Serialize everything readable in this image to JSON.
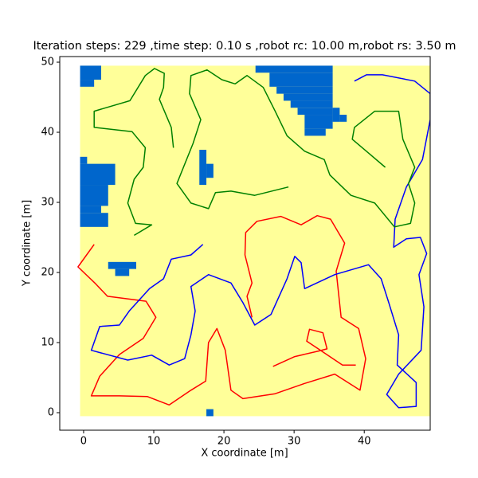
{
  "chart_data": {
    "type": "map",
    "title": "Iteration steps: 229 ,time step: 0.10 s ,robot rc: 10.00 m,robot rs: 3.50 m",
    "xlabel": "X coordinate [m]",
    "ylabel": "Y coordinate [m]",
    "xlim": [
      -3.4,
      49.4
    ],
    "ylim": [
      -2.5,
      50.8
    ],
    "xticks": [
      0,
      10,
      20,
      30,
      40
    ],
    "yticks": [
      0,
      10,
      20,
      30,
      40,
      50
    ],
    "map": {
      "free_color": "#ffff99",
      "obstacle_color": "#0066cc",
      "extent": [
        -0.5,
        49.5,
        -0.5,
        49.5
      ],
      "obstacles": [
        [
          -0.5,
          47.5,
          2.5,
          49.5
        ],
        [
          -0.5,
          46.5,
          1.5,
          47.5
        ],
        [
          -0.5,
          35.5,
          0.5,
          36.5
        ],
        [
          -0.5,
          32.5,
          4.5,
          35.5
        ],
        [
          -0.5,
          29.5,
          3.5,
          32.5
        ],
        [
          -0.5,
          28.5,
          2.5,
          29.5
        ],
        [
          -0.5,
          26.5,
          3.5,
          28.5
        ],
        [
          3.5,
          20.5,
          7.5,
          21.5
        ],
        [
          4.5,
          19.5,
          6.5,
          20.5
        ],
        [
          16.5,
          32.5,
          17.5,
          37.5
        ],
        [
          17.5,
          33.5,
          18.5,
          35.5
        ],
        [
          24.5,
          48.5,
          35.5,
          49.5
        ],
        [
          26.5,
          46.5,
          35.5,
          48.5
        ],
        [
          27.5,
          45.5,
          35.5,
          46.5
        ],
        [
          28.5,
          44.5,
          35.5,
          45.5
        ],
        [
          29.5,
          43.5,
          35.5,
          44.5
        ],
        [
          30.5,
          42.5,
          35.5,
          43.5
        ],
        [
          35.5,
          41.5,
          36.5,
          43.5
        ],
        [
          36.5,
          41.5,
          37.5,
          42.5
        ],
        [
          31.5,
          40.5,
          35.5,
          42.5
        ],
        [
          31.5,
          39.5,
          34.5,
          40.5
        ],
        [
          17.5,
          -0.5,
          18.5,
          0.5
        ]
      ]
    },
    "series": [
      {
        "color": "red",
        "x": [
          1.5,
          -0.8,
          1.7,
          3.4,
          8.9,
          10.3,
          8.5,
          5.1,
          2.3,
          1.1,
          5.1,
          9.1,
          12.2,
          15.3,
          17.4,
          17.8,
          19.0,
          20.2,
          21.0,
          22.7,
          27.3,
          31.3,
          35.8,
          39.4,
          40.2,
          39.2,
          36.7,
          36.0,
          37.2,
          35.2,
          33.3,
          31.0,
          28.1,
          24.7,
          23.1,
          23.0,
          24.0,
          23.3,
          24.0,
          null,
          27.0,
          30.1,
          33.5,
          34.7,
          34.1,
          32.2,
          31.8,
          33.3,
          36.9,
          38.8
        ],
        "y": [
          24.0,
          20.8,
          18.4,
          16.6,
          15.9,
          13.6,
          10.6,
          8.3,
          5.2,
          2.4,
          2.4,
          2.3,
          1.1,
          3.2,
          4.5,
          10.0,
          12.0,
          8.9,
          3.2,
          2.0,
          2.7,
          4.1,
          5.5,
          3.2,
          7.7,
          12.0,
          13.6,
          20.2,
          24.2,
          27.6,
          28.1,
          26.8,
          28.0,
          27.3,
          25.7,
          22.5,
          18.5,
          16.6,
          13.6,
          null,
          6.6,
          8.0,
          8.8,
          9.1,
          11.4,
          11.9,
          10.2,
          9.2,
          6.8,
          6.8
        ]
      },
      {
        "color": "blue",
        "x": [
          17.0,
          15.3,
          12.5,
          11.4,
          9.4,
          6.5,
          5.1,
          2.3,
          1.1,
          6.3,
          9.7,
          12.2,
          14.4,
          15.3,
          15.9,
          15.3,
          17.8,
          21.0,
          22.7,
          24.4,
          26.7,
          29.0,
          30.1,
          31.0,
          31.5,
          35.8,
          40.6,
          42.4,
          43.5,
          44.9,
          44.7,
          47.4,
          47.4,
          44.9,
          43.2,
          44.9,
          48.1,
          48.5,
          47.8,
          48.9,
          48.0,
          46.0,
          44.2,
          44.4,
          46.0,
          48.3,
          49.4,
          49.4,
          47.2,
          42.6,
          40.3,
          38.6
        ],
        "y": [
          24.0,
          22.5,
          21.9,
          19.1,
          17.7,
          14.5,
          12.5,
          12.3,
          8.9,
          7.5,
          8.2,
          6.8,
          7.7,
          11.1,
          14.5,
          18.0,
          19.7,
          18.5,
          15.7,
          12.5,
          14.0,
          19.1,
          22.3,
          21.4,
          17.7,
          19.7,
          21.1,
          19.1,
          15.7,
          11.1,
          6.8,
          4.3,
          0.9,
          0.7,
          2.6,
          5.5,
          8.9,
          15.1,
          19.7,
          22.7,
          25.0,
          24.8,
          23.6,
          27.6,
          32.2,
          36.1,
          41.8,
          45.5,
          47.3,
          48.2,
          48.2,
          47.3
        ]
      },
      {
        "color": "green",
        "x": [
          43.0,
          40.3,
          38.3,
          38.6,
          41.5,
          44.9,
          45.5,
          47.2,
          46.3,
          47.2,
          46.6,
          44.3,
          41.5,
          38.1,
          35.1,
          34.3,
          31.5,
          29.0,
          27.3,
          25.6,
          23.3,
          21.6,
          19.7,
          17.6,
          15.3,
          15.1,
          16.7,
          15.6,
          13.3,
          15.3,
          17.8,
          18.8,
          21.0,
          24.4,
          29.2,
          null,
          7.2,
          9.7,
          7.4,
          6.3,
          7.2,
          8.5,
          8.8,
          6.9,
          1.5,
          1.5,
          6.6,
          8.8,
          10.1,
          11.5,
          11.4,
          10.8,
          12.5,
          12.8
        ],
        "y": [
          35.0,
          37.3,
          39.0,
          40.7,
          43.0,
          43.0,
          39.0,
          35.0,
          32.7,
          29.9,
          27.0,
          26.5,
          29.9,
          31.0,
          33.9,
          36.1,
          37.3,
          39.5,
          43.0,
          46.4,
          48.1,
          46.9,
          47.5,
          48.9,
          48.1,
          45.5,
          41.8,
          38.4,
          32.7,
          29.9,
          29.1,
          31.4,
          31.6,
          31.0,
          32.2,
          null,
          25.3,
          26.8,
          27.0,
          29.9,
          33.3,
          35.0,
          37.8,
          40.1,
          40.7,
          43.0,
          44.5,
          48.1,
          49.1,
          48.4,
          46.4,
          44.7,
          40.7,
          37.8
        ]
      }
    ]
  }
}
